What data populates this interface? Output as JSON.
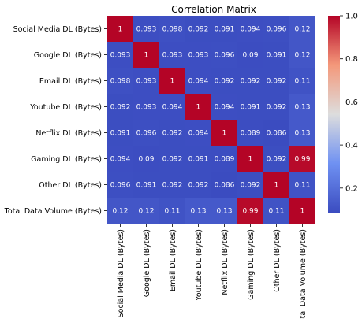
{
  "chart_data": {
    "type": "heatmap",
    "title": "Correlation Matrix",
    "rows": [
      "Social Media DL (Bytes)",
      "Google DL (Bytes)",
      "Email DL (Bytes)",
      "Youtube DL (Bytes)",
      "Netflix DL (Bytes)",
      "Gaming DL (Bytes)",
      "Other DL (Bytes)",
      "Total Data Volume (Bytes)"
    ],
    "columns": [
      "Social Media DL (Bytes)",
      "Google DL (Bytes)",
      "Email DL (Bytes)",
      "Youtube DL (Bytes)",
      "Netflix DL (Bytes)",
      "Gaming DL (Bytes)",
      "Other DL (Bytes)",
      "Total Data Volume (Bytes)"
    ],
    "values": [
      [
        1,
        0.093,
        0.098,
        0.092,
        0.091,
        0.094,
        0.096,
        0.12
      ],
      [
        0.093,
        1,
        0.093,
        0.093,
        0.096,
        0.09,
        0.091,
        0.12
      ],
      [
        0.098,
        0.093,
        1,
        0.094,
        0.092,
        0.092,
        0.092,
        0.11
      ],
      [
        0.092,
        0.093,
        0.094,
        1,
        0.094,
        0.091,
        0.092,
        0.13
      ],
      [
        0.091,
        0.096,
        0.092,
        0.094,
        1,
        0.089,
        0.086,
        0.13
      ],
      [
        0.094,
        0.09,
        0.092,
        0.091,
        0.089,
        1,
        0.092,
        0.99
      ],
      [
        0.096,
        0.091,
        0.092,
        0.092,
        0.086,
        0.092,
        1,
        0.11
      ],
      [
        0.12,
        0.12,
        0.11,
        0.13,
        0.13,
        0.99,
        0.11,
        1
      ]
    ],
    "colormap": "coolwarm",
    "colorbar": {
      "min": 0.086,
      "max": 1.0,
      "ticks": [
        0.2,
        0.4,
        0.6,
        0.8,
        1.0
      ],
      "tick_labels": [
        "0.2",
        "0.4",
        "0.6",
        "0.8",
        "1.0"
      ]
    },
    "annotate": true
  }
}
